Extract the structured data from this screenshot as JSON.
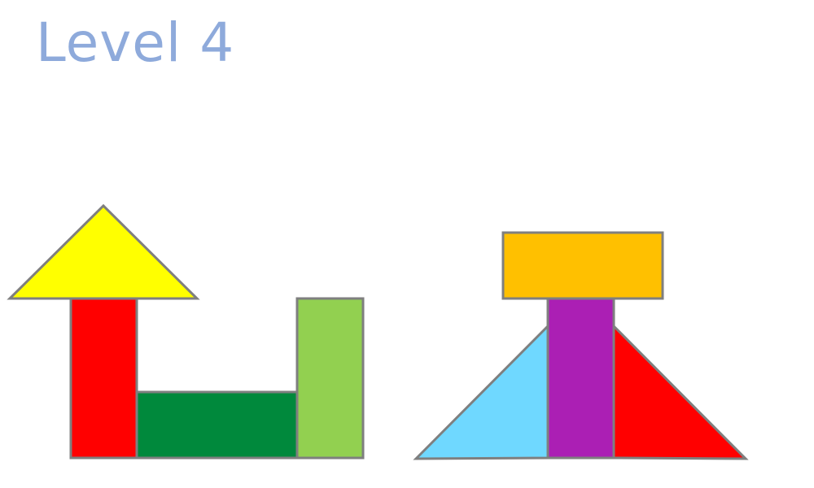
{
  "level": {
    "title": "Level 4",
    "title_color": "#8eaadb"
  },
  "theme": {
    "outline_color": "#7f7f7f",
    "background": "#ffffff"
  },
  "structures": [
    {
      "name": "house-and-u",
      "pieces": [
        {
          "shape": "triangle",
          "color": "#ffff00"
        },
        {
          "shape": "rectangle",
          "color": "#ff0000"
        },
        {
          "shape": "rectangle",
          "color": "#00893c"
        },
        {
          "shape": "rectangle",
          "color": "#92d050"
        }
      ]
    },
    {
      "name": "tower-on-triangles",
      "pieces": [
        {
          "shape": "rectangle",
          "color": "#ffc000"
        },
        {
          "shape": "triangle",
          "color": "#6fd8ff"
        },
        {
          "shape": "triangle",
          "color": "#ff0000"
        },
        {
          "shape": "rectangle",
          "color": "#ab1fb4"
        }
      ]
    }
  ]
}
